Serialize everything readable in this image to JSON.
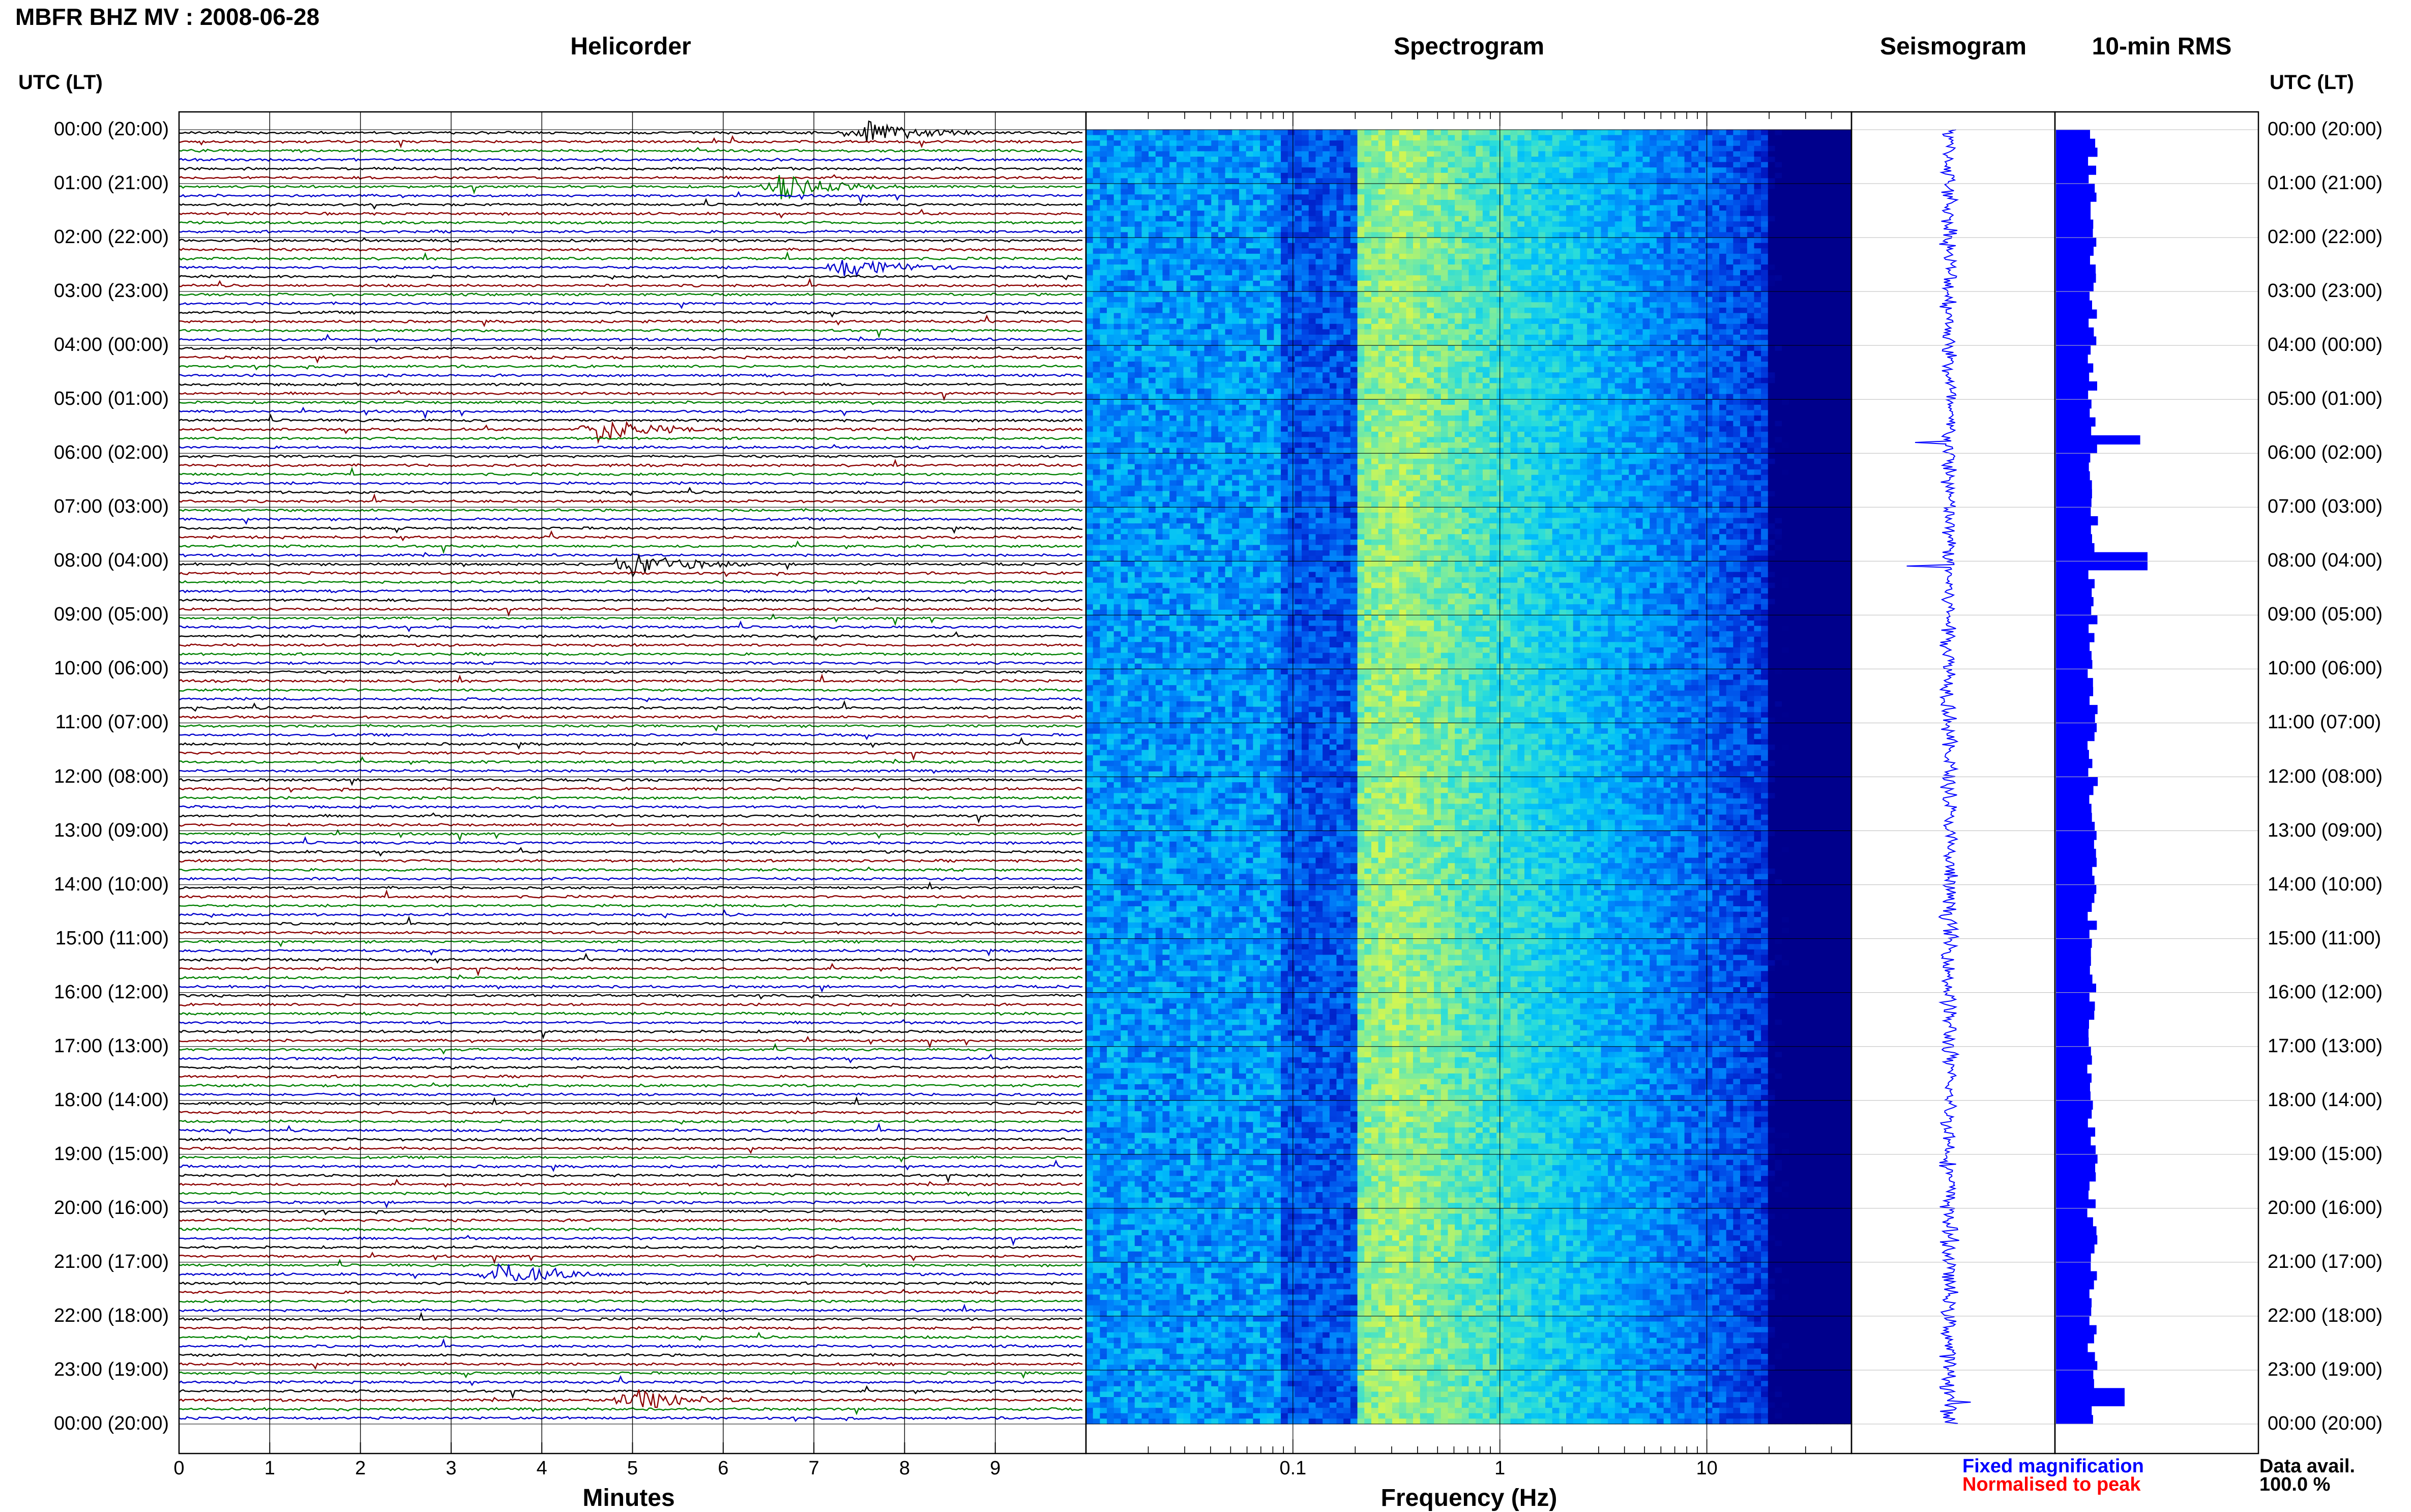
{
  "header": {
    "title": "MBFR BHZ MV : 2008-06-28"
  },
  "panels": {
    "helicorder": "Helicorder",
    "spectrogram": "Spectrogram",
    "seismogram": "Seismogram",
    "rms": "10-min RMS"
  },
  "axes": {
    "utc_label_left": "UTC (LT)",
    "utc_label_right": "UTC (LT)",
    "minutes_label": "Minutes",
    "frequency_label": "Frequency (Hz)",
    "minute_ticks": [
      "0",
      "1",
      "2",
      "3",
      "4",
      "5",
      "6",
      "7",
      "8",
      "9"
    ],
    "frequency_ticks": [
      "0.1",
      "1",
      "10"
    ]
  },
  "legend": {
    "fixed": "Fixed magnification",
    "normalised": "Normalised to peak",
    "data_avail_label": "Data avail.",
    "data_avail_value": "100.0 %"
  },
  "colors": {
    "trace_cycle": [
      "#000000",
      "#8b0000",
      "#008000",
      "#0000cc"
    ],
    "fixed_magnification": "#0000ff",
    "normalised_to_peak": "#ff0000",
    "rms_bar": "#0000ff"
  },
  "chart_data": [
    {
      "type": "line",
      "title": "Helicorder",
      "xlabel": "Minutes",
      "xlim": [
        0,
        10
      ],
      "x_ticks": [
        0,
        1,
        2,
        3,
        4,
        5,
        6,
        7,
        8,
        9
      ],
      "lines_per_hour": 6,
      "hours": 24,
      "row_labels": [
        "00:00 (20:00)",
        "01:00 (21:00)",
        "02:00 (22:00)",
        "03:00 (23:00)",
        "04:00 (00:00)",
        "05:00 (01:00)",
        "06:00 (02:00)",
        "07:00 (03:00)",
        "08:00 (04:00)",
        "09:00 (05:00)",
        "10:00 (06:00)",
        "11:00 (07:00)",
        "12:00 (08:00)",
        "13:00 (09:00)",
        "14:00 (10:00)",
        "15:00 (11:00)",
        "16:00 (12:00)",
        "17:00 (13:00)",
        "18:00 (14:00)",
        "19:00 (15:00)",
        "20:00 (16:00)",
        "21:00 (17:00)",
        "22:00 (18:00)",
        "23:00 (19:00)",
        "00:00 (20:00)"
      ],
      "events": [
        {
          "time_hours": 0.03,
          "minute": 7.5
        },
        {
          "time_hours": 1.15,
          "minute": 6.6
        },
        {
          "time_hours": 2.55,
          "minute": 7.3
        },
        {
          "time_hours": 5.6,
          "minute": 4.6
        },
        {
          "time_hours": 8.0,
          "minute": 5.0
        },
        {
          "time_hours": 21.3,
          "minute": 3.5
        },
        {
          "time_hours": 23.5,
          "minute": 5.0
        }
      ]
    },
    {
      "type": "heatmap",
      "title": "Spectrogram",
      "xlabel": "Frequency (Hz)",
      "x_scale": "log",
      "xlim": [
        0.01,
        50
      ],
      "x_ticks": [
        0.1,
        1,
        10
      ],
      "peak_band_hz": [
        0.2,
        0.5
      ]
    },
    {
      "type": "line",
      "title": "Seismogram",
      "spikes": [
        {
          "time_hours": 5.8,
          "relative_amplitude": 0.7
        },
        {
          "time_hours": 8.1,
          "relative_amplitude": 0.5
        },
        {
          "time_hours": 23.6,
          "relative_amplitude": 1.0
        }
      ]
    },
    {
      "type": "bar",
      "title": "10-min RMS",
      "bins": 144,
      "base_level": 0.4,
      "peaks": [
        {
          "time_hours": 5.8,
          "relative_value": 0.92
        },
        {
          "time_hours": 8.0,
          "relative_value": 1.0
        },
        {
          "time_hours": 23.5,
          "relative_value": 0.75
        }
      ]
    }
  ]
}
